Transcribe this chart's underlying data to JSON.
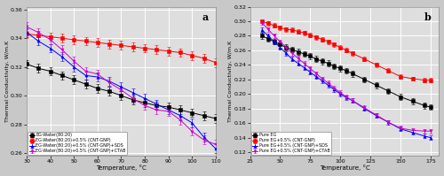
{
  "panel_a": {
    "label": "a",
    "xlabel": "Temperature, °C",
    "ylabel": "Thermal Conductivity, W/m.K",
    "xlim": [
      30,
      110
    ],
    "ylim": [
      0.258,
      0.362
    ],
    "xticks": [
      30,
      40,
      50,
      60,
      70,
      80,
      90,
      100,
      110
    ],
    "yticks": [
      0.26,
      0.28,
      0.3,
      0.32,
      0.34,
      0.36
    ],
    "series": [
      {
        "label": "EG-Water(80:20)",
        "color": "#000000",
        "marker": "s",
        "x": [
          30,
          35,
          40,
          45,
          50,
          55,
          60,
          65,
          70,
          75,
          80,
          85,
          90,
          95,
          100,
          105,
          110
        ],
        "y": [
          0.322,
          0.319,
          0.317,
          0.314,
          0.311,
          0.308,
          0.305,
          0.303,
          0.3,
          0.297,
          0.295,
          0.293,
          0.292,
          0.29,
          0.288,
          0.286,
          0.284
        ],
        "yerr": 0.003
      },
      {
        "label": "EG-Water(80:20)+0.5% (CNT-GNP)",
        "color": "#ff0000",
        "marker": "s",
        "x": [
          30,
          35,
          40,
          45,
          50,
          55,
          60,
          65,
          70,
          75,
          80,
          85,
          90,
          95,
          100,
          105,
          110
        ],
        "y": [
          0.343,
          0.342,
          0.341,
          0.34,
          0.339,
          0.338,
          0.337,
          0.336,
          0.335,
          0.334,
          0.333,
          0.332,
          0.331,
          0.33,
          0.328,
          0.326,
          0.323
        ],
        "yerr": 0.003
      },
      {
        "label": "EG-Water(80:20)+0.5% (CNT-GNP)+SDS",
        "color": "#0000ff",
        "marker": "^",
        "x": [
          30,
          35,
          40,
          45,
          50,
          55,
          60,
          65,
          70,
          75,
          80,
          85,
          90,
          95,
          100,
          105,
          110
        ],
        "y": [
          0.344,
          0.338,
          0.333,
          0.327,
          0.32,
          0.314,
          0.313,
          0.31,
          0.306,
          0.302,
          0.298,
          0.294,
          0.29,
          0.286,
          0.281,
          0.271,
          0.263
        ],
        "yerr": 0.003
      },
      {
        "label": "EG-Water(80:20)+0.5% (CNT-GNP)+CTAB",
        "color": "#cc00cc",
        "marker": "v",
        "x": [
          30,
          35,
          40,
          45,
          50,
          55,
          60,
          65,
          70,
          75,
          80,
          85,
          90,
          95,
          100,
          105,
          110
        ],
        "y": [
          0.348,
          0.344,
          0.339,
          0.332,
          0.324,
          0.317,
          0.315,
          0.309,
          0.304,
          0.298,
          0.293,
          0.29,
          0.289,
          0.283,
          0.275,
          0.269,
          0.266
        ],
        "yerr": 0.003
      }
    ]
  },
  "panel_b": {
    "label": "b",
    "xlabel": "Temperature, °C",
    "ylabel": "Thermal Conductivity, W/m.K",
    "xlim": [
      25,
      182
    ],
    "ylim": [
      0.115,
      0.32
    ],
    "xticks": [
      25,
      50,
      75,
      100,
      125,
      150,
      175
    ],
    "yticks": [
      0.12,
      0.14,
      0.16,
      0.18,
      0.2,
      0.22,
      0.24,
      0.26,
      0.28,
      0.3,
      0.32
    ],
    "series": [
      {
        "label": "Pure EG",
        "color": "#000000",
        "marker": "s",
        "x": [
          35,
          40,
          45,
          50,
          55,
          60,
          65,
          70,
          75,
          80,
          85,
          90,
          95,
          100,
          105,
          110,
          120,
          130,
          140,
          150,
          160,
          170,
          175
        ],
        "y": [
          0.28,
          0.276,
          0.272,
          0.268,
          0.264,
          0.261,
          0.258,
          0.255,
          0.252,
          0.248,
          0.245,
          0.242,
          0.238,
          0.235,
          0.232,
          0.228,
          0.22,
          0.212,
          0.204,
          0.196,
          0.19,
          0.184,
          0.182
        ],
        "yerr": 0.004
      },
      {
        "label": "Pure EG+0.5% (CNT-GNP)",
        "color": "#ff0000",
        "marker": "s",
        "x": [
          35,
          40,
          45,
          50,
          55,
          60,
          65,
          70,
          75,
          80,
          85,
          90,
          95,
          100,
          105,
          110,
          120,
          130,
          140,
          150,
          160,
          170,
          175
        ],
        "y": [
          0.3,
          0.297,
          0.294,
          0.291,
          0.289,
          0.288,
          0.286,
          0.284,
          0.281,
          0.278,
          0.275,
          0.272,
          0.268,
          0.264,
          0.26,
          0.256,
          0.248,
          0.24,
          0.232,
          0.224,
          0.221,
          0.219,
          0.219
        ],
        "yerr": 0.003
      },
      {
        "label": "Pure EG+0.5% (CNT-GNP)+SDS",
        "color": "#0000ff",
        "marker": "^",
        "x": [
          35,
          40,
          45,
          50,
          55,
          60,
          65,
          70,
          75,
          80,
          85,
          90,
          95,
          100,
          105,
          110,
          120,
          130,
          140,
          150,
          160,
          170,
          175
        ],
        "y": [
          0.288,
          0.28,
          0.272,
          0.264,
          0.256,
          0.248,
          0.242,
          0.236,
          0.23,
          0.224,
          0.218,
          0.212,
          0.206,
          0.2,
          0.195,
          0.191,
          0.18,
          0.17,
          0.161,
          0.152,
          0.147,
          0.142,
          0.14
        ],
        "yerr": 0.003
      },
      {
        "label": "Pure EG+0.5% (CNT-GNP)+CTAB",
        "color": "#cc00cc",
        "marker": "v",
        "x": [
          35,
          40,
          45,
          50,
          55,
          60,
          65,
          70,
          75,
          80,
          85,
          90,
          95,
          100,
          105,
          110,
          120,
          130,
          140,
          150,
          160,
          170,
          175
        ],
        "y": [
          0.298,
          0.289,
          0.28,
          0.272,
          0.264,
          0.256,
          0.249,
          0.242,
          0.235,
          0.228,
          0.221,
          0.215,
          0.208,
          0.202,
          0.196,
          0.191,
          0.181,
          0.171,
          0.161,
          0.153,
          0.15,
          0.149,
          0.149
        ],
        "yerr": 0.003
      }
    ]
  },
  "bg_color": "#dedede",
  "grid_color": "#ffffff",
  "fig_bg": "#c8c8c8"
}
